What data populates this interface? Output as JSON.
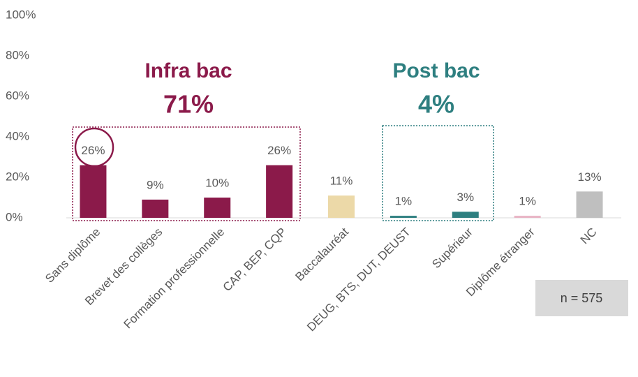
{
  "chart_data": {
    "type": "bar",
    "categories": [
      "Sans diplôme",
      "Brevet des collèges",
      "Formation professionnelle",
      "CAP, BEP, CQP",
      "Baccalauréat",
      "DEUG, BTS, DUT, DEUST",
      "Supérieur",
      "Diplôme étranger",
      "NC"
    ],
    "values": [
      26,
      9,
      10,
      26,
      11,
      1,
      3,
      1,
      13
    ],
    "value_labels": [
      "26%",
      "9%",
      "10%",
      "26%",
      "11%",
      "1%",
      "3%",
      "1%",
      "13%"
    ],
    "colors": [
      "#8b1a4a",
      "#8b1a4a",
      "#8b1a4a",
      "#8b1a4a",
      "#ecd9a8",
      "#2e7f80",
      "#2e7f80",
      "#e8b4c4",
      "#bfbfbf"
    ],
    "ylim": [
      0,
      100
    ],
    "yticks": [
      {
        "value": 0,
        "label": "0%"
      },
      {
        "value": 20,
        "label": "20%"
      },
      {
        "value": 40,
        "label": "40%"
      },
      {
        "value": 60,
        "label": "60%"
      },
      {
        "value": 80,
        "label": "80%"
      },
      {
        "value": 100,
        "label": "100%"
      }
    ],
    "grid": false,
    "annotations": [
      {
        "text": "Infra bac",
        "color": "#8b1a4a"
      },
      {
        "text": "71%",
        "color": "#8b1a4a"
      },
      {
        "text": "Post bac",
        "color": "#2e7f80"
      },
      {
        "text": "4%",
        "color": "#2e7f80"
      },
      {
        "text": "n = 575"
      }
    ]
  }
}
